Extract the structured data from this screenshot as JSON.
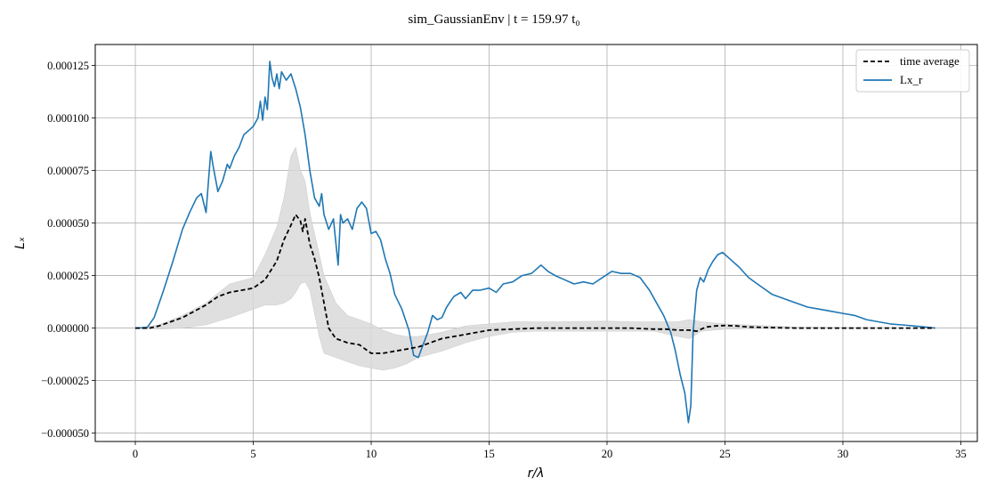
{
  "chart_data": {
    "type": "line",
    "title": "sim_GaussianEnv | t = 159.97 t₀",
    "xlabel": "r/λ",
    "ylabel": "Lₓ",
    "xlim": [
      -1.7,
      35.7
    ],
    "ylim": [
      -5.4e-05,
      0.000135
    ],
    "x_ticks": [
      0,
      5,
      10,
      15,
      20,
      25,
      30,
      35
    ],
    "x_tick_labels": [
      "0",
      "5",
      "10",
      "15",
      "20",
      "25",
      "30",
      "35"
    ],
    "y_ticks": [
      -5e-05,
      -2.5e-05,
      0,
      2.5e-05,
      5e-05,
      7.5e-05,
      0.0001,
      0.000125
    ],
    "y_tick_labels": [
      "−0.000050",
      "−0.000025",
      "0.000000",
      "0.000025",
      "0.000050",
      "0.000075",
      "0.000100",
      "0.000125"
    ],
    "grid": true,
    "legend_position": "upper right",
    "colors": {
      "lx_r": "#1f77b4",
      "time_average": "#000000",
      "band": "#d9d9d9",
      "grid": "#b0b0b0"
    },
    "series": [
      {
        "name": "Lx_r",
        "x": [
          0,
          0.5,
          0.8,
          1.2,
          1.6,
          2.0,
          2.3,
          2.6,
          2.8,
          3.0,
          3.1,
          3.2,
          3.3,
          3.5,
          3.7,
          3.9,
          4.0,
          4.2,
          4.4,
          4.6,
          4.8,
          5.0,
          5.2,
          5.3,
          5.4,
          5.5,
          5.6,
          5.7,
          5.8,
          5.9,
          6.0,
          6.1,
          6.2,
          6.4,
          6.6,
          6.8,
          7.0,
          7.2,
          7.4,
          7.6,
          7.8,
          7.9,
          8.0,
          8.2,
          8.4,
          8.6,
          8.7,
          8.8,
          9.0,
          9.2,
          9.4,
          9.6,
          9.8,
          10.0,
          10.2,
          10.4,
          10.6,
          10.8,
          11.0,
          11.3,
          11.6,
          11.8,
          12.0,
          12.2,
          12.4,
          12.6,
          12.8,
          13.0,
          13.2,
          13.5,
          13.8,
          14.0,
          14.3,
          14.6,
          15.0,
          15.3,
          15.6,
          16.0,
          16.4,
          16.8,
          17.2,
          17.5,
          17.8,
          18.2,
          18.6,
          19.0,
          19.4,
          19.8,
          20.2,
          20.6,
          21.0,
          21.4,
          21.8,
          22.1,
          22.4,
          22.7,
          22.9,
          23.1,
          23.3,
          23.45,
          23.55,
          23.65,
          23.8,
          23.95,
          24.1,
          24.3,
          24.5,
          24.7,
          24.9,
          25.2,
          25.6,
          26.0,
          26.5,
          27.0,
          27.5,
          28.0,
          28.5,
          29.0,
          29.5,
          30.0,
          30.5,
          31.0,
          31.5,
          32.0,
          32.5,
          33.0,
          33.5,
          33.9
        ],
        "y": [
          0,
          2e-07,
          5e-06,
          1.8e-05,
          3.2e-05,
          4.7e-05,
          5.5e-05,
          6.2e-05,
          6.4e-05,
          5.5e-05,
          7e-05,
          8.4e-05,
          7.7e-05,
          6.5e-05,
          7e-05,
          7.8e-05,
          7.6e-05,
          8.2e-05,
          8.6e-05,
          9.2e-05,
          9.4e-05,
          9.6e-05,
          0.0001,
          0.000108,
          9.9e-05,
          0.00011,
          0.000104,
          0.000127,
          0.000119,
          0.000115,
          0.000121,
          0.000114,
          0.000122,
          0.000118,
          0.000121,
          0.000114,
          0.000105,
          9.2e-05,
          7.5e-05,
          6.2e-05,
          5.8e-05,
          6.4e-05,
          5.4e-05,
          4.7e-05,
          5.2e-05,
          3e-05,
          5.4e-05,
          5e-05,
          5.2e-05,
          4.7e-05,
          5.7e-05,
          6e-05,
          5.7e-05,
          4.5e-05,
          4.6e-05,
          4.2e-05,
          3.3e-05,
          2.6e-05,
          1.6e-05,
          9e-06,
          -1e-06,
          -1.3e-05,
          -1.4e-05,
          -8e-06,
          -2e-06,
          6e-06,
          4e-06,
          5e-06,
          1e-05,
          1.5e-05,
          1.7e-05,
          1.4e-05,
          1.8e-05,
          1.8e-05,
          1.9e-05,
          1.7e-05,
          2.1e-05,
          2.2e-05,
          2.5e-05,
          2.6e-05,
          3e-05,
          2.7e-05,
          2.5e-05,
          2.3e-05,
          2.1e-05,
          2.2e-05,
          2.1e-05,
          2.4e-05,
          2.7e-05,
          2.6e-05,
          2.6e-05,
          2.4e-05,
          1.8e-05,
          1.2e-05,
          6e-06,
          -2e-06,
          -1.1e-05,
          -2.2e-05,
          -3.1e-05,
          -4.5e-05,
          -3.7e-05,
          -2e-06,
          1.8e-05,
          2.4e-05,
          2.2e-05,
          2.8e-05,
          3.2e-05,
          3.5e-05,
          3.6e-05,
          3.3e-05,
          2.9e-05,
          2.4e-05,
          2e-05,
          1.6e-05,
          1.4e-05,
          1.2e-05,
          1e-05,
          9e-06,
          8e-06,
          7e-06,
          6e-06,
          4e-06,
          3e-06,
          2e-06,
          1.5e-06,
          1e-06,
          5e-07,
          0
        ]
      },
      {
        "name": "time average",
        "x": [
          0,
          0.6,
          1.0,
          1.5,
          2.0,
          2.5,
          3.0,
          3.5,
          4.0,
          4.5,
          5.0,
          5.5,
          6.0,
          6.3,
          6.6,
          6.8,
          7.0,
          7.1,
          7.2,
          7.4,
          7.6,
          7.8,
          8.0,
          8.2,
          8.5,
          9.0,
          9.5,
          10.0,
          10.5,
          11.0,
          11.5,
          12.0,
          13.0,
          14.0,
          15.0,
          16.0,
          17.0,
          18.0,
          19.0,
          20.0,
          21.0,
          22.0,
          22.5,
          23.0,
          23.5,
          23.8,
          24.2,
          24.6,
          25.0,
          25.5,
          26.0,
          27.0,
          28.0,
          29.0,
          30.0,
          31.0,
          32.0,
          33.0,
          33.9
        ],
        "y": [
          0,
          0,
          1e-06,
          3e-06,
          5e-06,
          8e-06,
          1.1e-05,
          1.5e-05,
          1.7e-05,
          1.8e-05,
          1.9e-05,
          2.3e-05,
          3.2e-05,
          4.2e-05,
          4.9e-05,
          5.4e-05,
          5.1e-05,
          4.6e-05,
          5.2e-05,
          4e-05,
          3.3e-05,
          2.4e-05,
          1.2e-05,
          0,
          -5e-06,
          -7e-06,
          -8e-06,
          -1.2e-05,
          -1.2e-05,
          -1.1e-05,
          -1e-05,
          -9e-06,
          -5e-06,
          -3e-06,
          -1e-06,
          -5e-07,
          0,
          0,
          0,
          0,
          0,
          -5e-07,
          -5e-07,
          -1e-06,
          -1e-06,
          -1.5e-06,
          5e-07,
          1e-06,
          1.2e-06,
          1e-06,
          5e-07,
          2e-07,
          0,
          0,
          0,
          0,
          0,
          0,
          0
        ]
      }
    ],
    "band": {
      "x": [
        0,
        1,
        2,
        3,
        4,
        5,
        5.5,
        6.0,
        6.3,
        6.6,
        6.8,
        7.0,
        7.2,
        7.4,
        7.6,
        7.8,
        8.0,
        8.5,
        9.0,
        9.5,
        10.0,
        10.5,
        11.0,
        11.5,
        12.0,
        13.0,
        14.0,
        15.0,
        16.0,
        17.0,
        18.0,
        19.0,
        20.0,
        21.0,
        22.0,
        23.0,
        23.5,
        24.0,
        25.0,
        26.0,
        27.0,
        28.0,
        30.0,
        32.0,
        33.9
      ],
      "upper": [
        0,
        1.5e-06,
        6e-06,
        1.2e-05,
        2.1e-05,
        2.4e-05,
        3.5e-05,
        4.8e-05,
        6.2e-05,
        8.2e-05,
        8.6e-05,
        7.5e-05,
        7e-05,
        5.5e-05,
        4.5e-05,
        3.5e-05,
        2.5e-05,
        1.2e-05,
        6e-06,
        4e-06,
        2e-06,
        -1e-06,
        -3e-06,
        -4e-06,
        -4e-06,
        -2e-06,
        1e-06,
        2e-06,
        3e-06,
        3e-06,
        3e-06,
        3.2e-06,
        3.3e-06,
        3e-06,
        3e-06,
        3e-06,
        4e-06,
        3e-06,
        2e-06,
        1.5e-06,
        1e-06,
        5e-07,
        3e-07,
        2e-07,
        0
      ],
      "lower": [
        0,
        -5e-07,
        0,
        1.5e-06,
        5e-06,
        9e-06,
        1.1e-05,
        1.1e-05,
        1.2e-05,
        1.4e-05,
        1.7e-05,
        2.1e-05,
        2.2e-05,
        1.8e-05,
        7e-06,
        -4e-06,
        -1.2e-05,
        -1.4e-05,
        -1.6e-05,
        -1.8e-05,
        -1.9e-05,
        -2e-05,
        -1.9e-05,
        -1.7e-05,
        -1.4e-05,
        -1.1e-05,
        -7e-06,
        -4e-06,
        -2e-06,
        -1.5e-06,
        -1.5e-06,
        -1.5e-06,
        -1.5e-06,
        -1.5e-06,
        -1.5e-06,
        -4e-06,
        -5e-06,
        -1.5e-06,
        -5e-07,
        -3e-07,
        -2e-07,
        0,
        0,
        0,
        0
      ]
    }
  }
}
